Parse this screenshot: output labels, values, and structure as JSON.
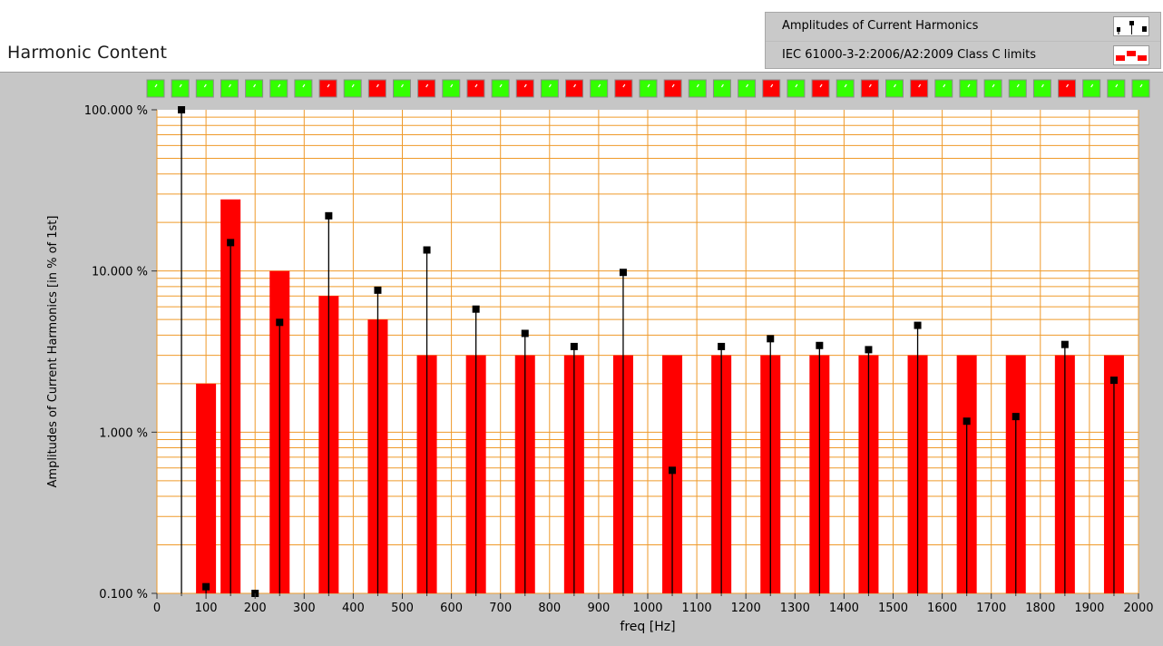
{
  "chart_title": "Harmonic Content",
  "legend": [
    {
      "label": "Amplitudes of Current Harmonics",
      "icon": "harmonic-points-icon"
    },
    {
      "label": "IEC 61000-3-2:2006/A2:2009 Class C limits",
      "icon": "limit-bars-icon"
    }
  ],
  "chart_data": {
    "type": "bar",
    "xlabel": "freq [Hz]",
    "ylabel": "Amplitudes of Current Harmonics [in % of 1st]",
    "xlim": [
      0,
      2000
    ],
    "ylim": [
      0.1,
      100
    ],
    "yscale": "log",
    "grid": true,
    "x_ticks": [
      "0",
      "100",
      "200",
      "300",
      "400",
      "500",
      "600",
      "700",
      "800",
      "900",
      "1000",
      "1100",
      "1200",
      "1300",
      "1400",
      "1500",
      "1600",
      "1700",
      "1800",
      "1900",
      "2000"
    ],
    "y_ticks": [
      {
        "value": 0.1,
        "label": "0.100 %"
      },
      {
        "value": 1,
        "label": "1.000 %"
      },
      {
        "value": 10,
        "label": "10.000 %"
      },
      {
        "value": 100,
        "label": "100.000 %"
      }
    ],
    "legend_position": "top-right",
    "series": [
      {
        "name": "Amplitudes of Current Harmonics",
        "kind": "points",
        "x": [
          50,
          100,
          150,
          200,
          250,
          350,
          450,
          550,
          650,
          750,
          850,
          950,
          1050,
          1150,
          1250,
          1350,
          1450,
          1550,
          1650,
          1750,
          1850,
          1950
        ],
        "values": [
          100,
          0.11,
          15,
          0.1,
          4.8,
          22,
          7.6,
          13.5,
          5.8,
          4.1,
          3.4,
          9.8,
          0.58,
          3.4,
          3.8,
          3.45,
          3.25,
          4.6,
          1.17,
          1.25,
          3.5,
          2.1
        ]
      },
      {
        "name": "IEC 61000-3-2:2006/A2:2009 Class C limits",
        "kind": "bars",
        "x": [
          100,
          150,
          250,
          350,
          450,
          550,
          650,
          750,
          850,
          950,
          1050,
          1150,
          1250,
          1350,
          1450,
          1550,
          1650,
          1750,
          1850,
          1950
        ],
        "values": [
          2,
          27.8,
          10,
          7,
          5,
          3,
          3,
          3,
          3,
          3,
          3,
          3,
          3,
          3,
          3,
          3,
          3,
          3,
          3,
          3
        ]
      }
    ],
    "status_indicators": [
      "pass",
      "pass",
      "pass",
      "pass",
      "pass",
      "pass",
      "pass",
      "fail",
      "pass",
      "fail",
      "pass",
      "fail",
      "pass",
      "fail",
      "pass",
      "fail",
      "pass",
      "fail",
      "pass",
      "fail",
      "pass",
      "fail",
      "pass",
      "pass",
      "pass",
      "fail",
      "pass",
      "fail",
      "pass",
      "fail",
      "pass",
      "fail",
      "pass",
      "pass",
      "pass",
      "pass",
      "pass",
      "fail",
      "pass",
      "pass",
      "pass"
    ]
  },
  "colors": {
    "plot_bg": "#ffffff",
    "grid": "#ef9a2a",
    "limit_bar": "#ff0000",
    "point": "#000000",
    "pass": "#33ff00",
    "fail": "#ff0000",
    "frame": "#c6c6c6"
  }
}
